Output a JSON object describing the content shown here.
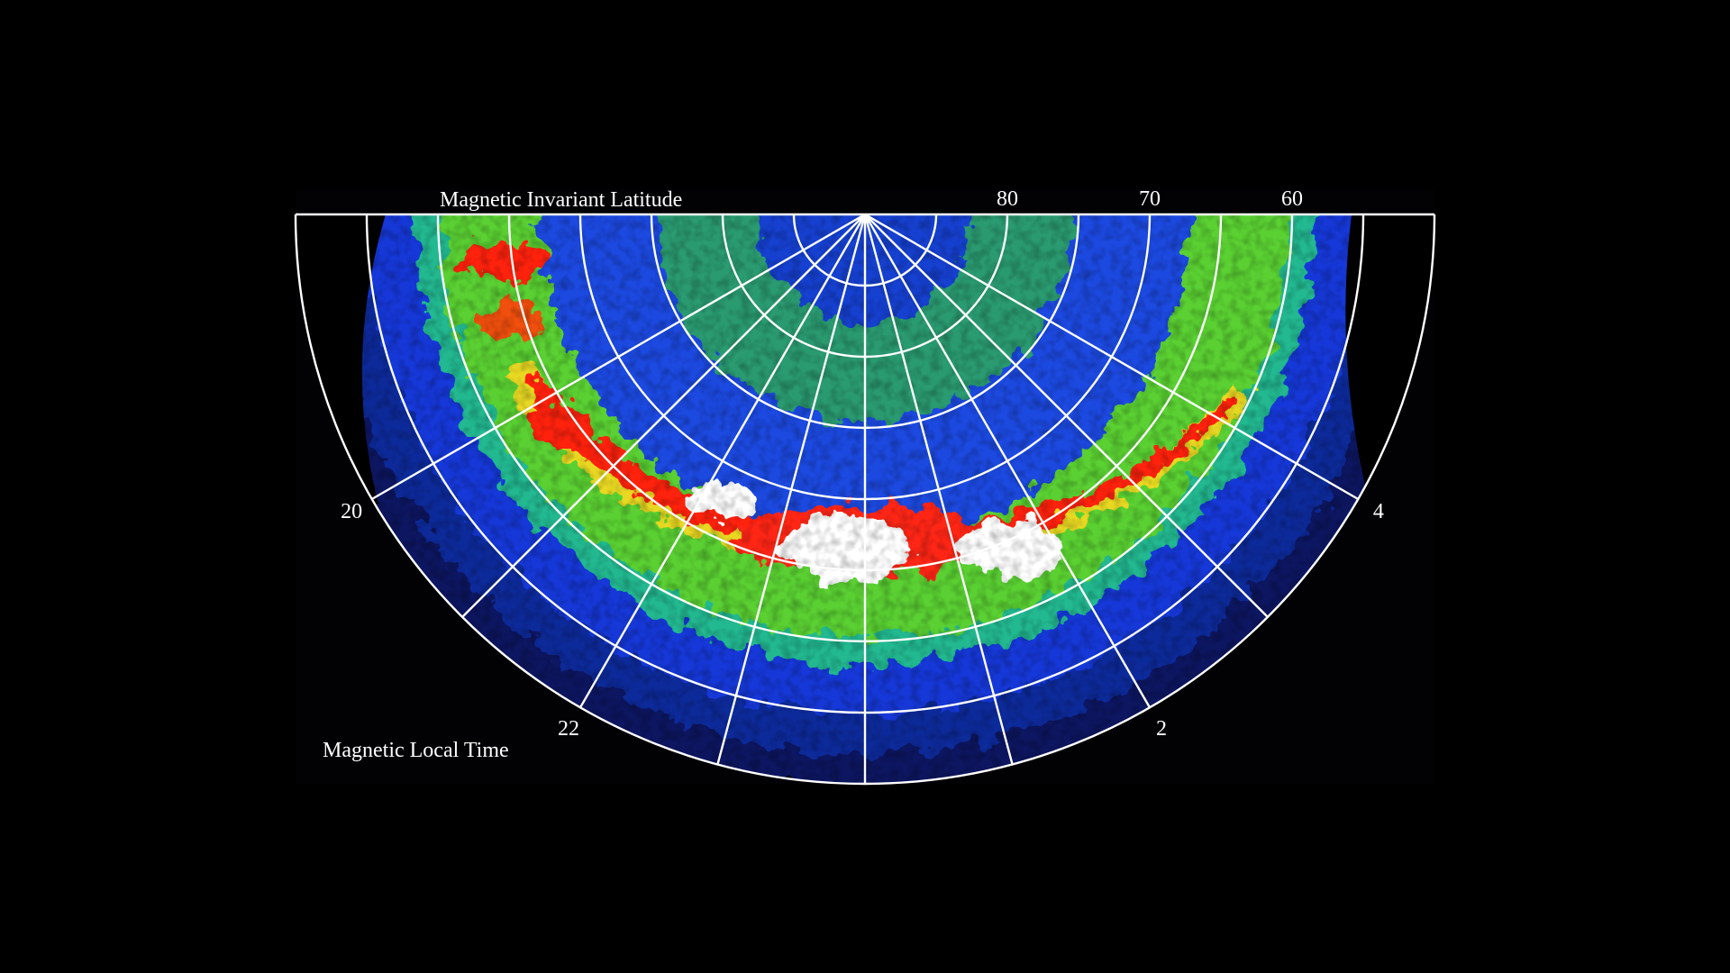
{
  "figure": {
    "background": "#000000",
    "grid_color": "#ffffff",
    "latitude_axis_label": "Magnetic Invariant Latitude",
    "local_time_axis_label": "Magnetic Local Time",
    "latitude_ticks": [
      "80",
      "70",
      "60"
    ],
    "local_time_ticks": [
      "20",
      "22",
      "2",
      "4"
    ],
    "latitude_grid_deg": [
      85,
      80,
      75,
      70,
      65,
      60,
      55,
      50
    ],
    "local_time_grid_hours": [
      20,
      21,
      22,
      23,
      0,
      1,
      2,
      3,
      4
    ],
    "colormap": [
      "#000000",
      "#0a1a7a",
      "#1040e0",
      "#20c0a0",
      "#70e020",
      "#e0e020",
      "#ff2010",
      "#ffffff"
    ],
    "intensity_description": "auroral oval emission, brightest near 22-2 MLT"
  }
}
